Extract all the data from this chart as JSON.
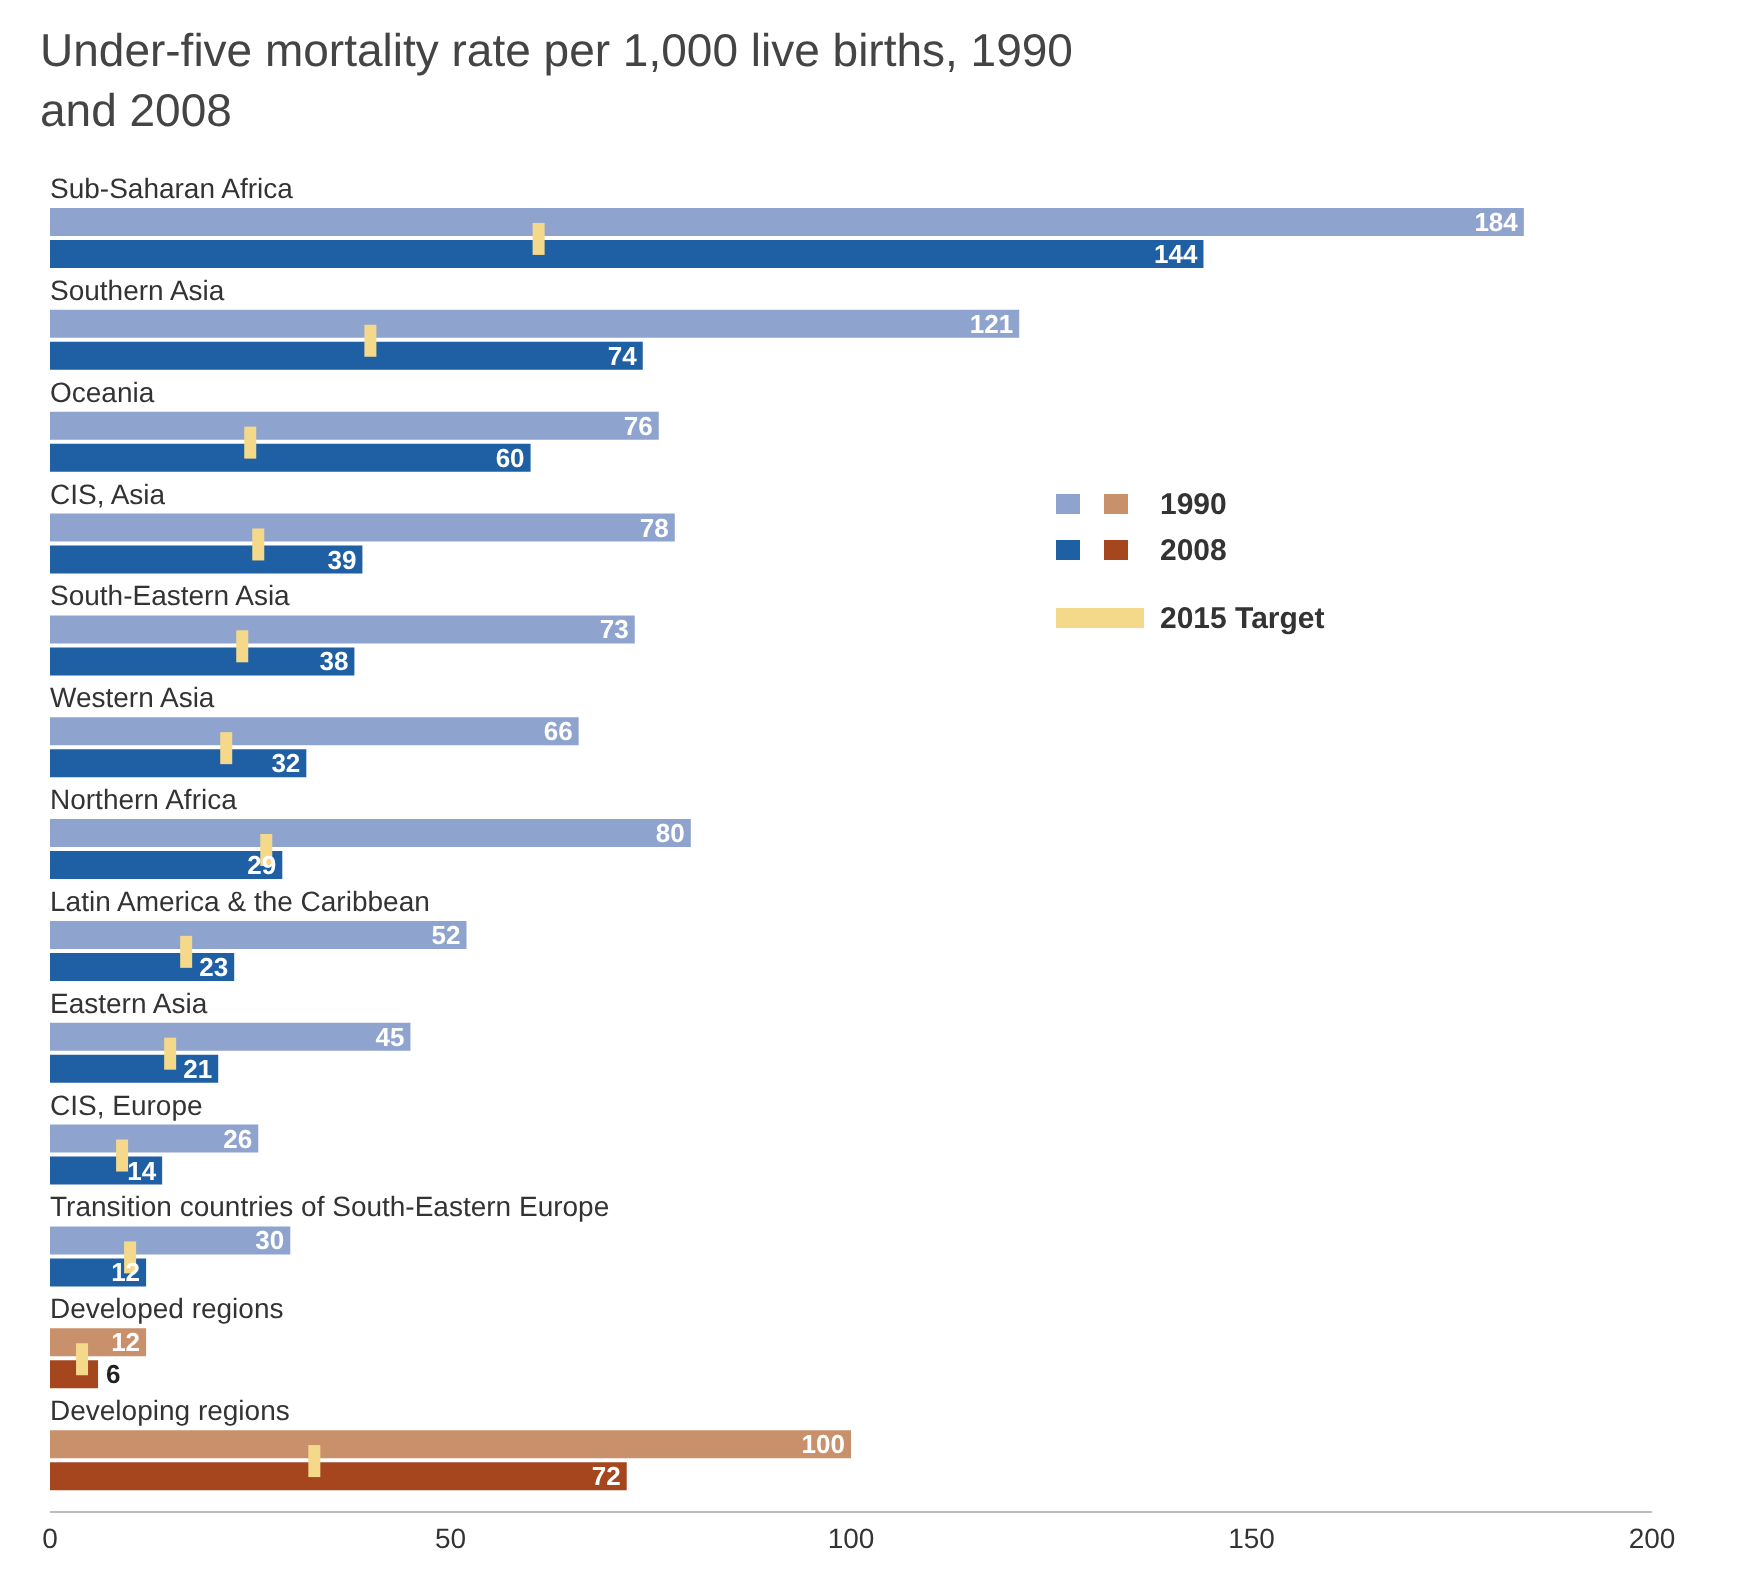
{
  "chart_data": {
    "type": "bar",
    "orientation": "horizontal",
    "title": "Under-five mortality rate per 1,000 live births, 1990 and 2008",
    "categories": [
      "Sub-Saharan Africa",
      "Southern Asia",
      "Oceania",
      "CIS, Asia",
      "South-Eastern Asia",
      "Western Asia",
      "Northern Africa",
      "Latin America & the Caribbean",
      "Eastern Asia",
      "CIS, Europe",
      "Transition countries of South-Eastern Europe",
      "Developed regions",
      "Developing regions"
    ],
    "series": [
      {
        "name": "1990",
        "color": "#8fa3cf",
        "colors": [
          "#8fa3cf",
          "#8fa3cf",
          "#8fa3cf",
          "#8fa3cf",
          "#8fa3cf",
          "#8fa3cf",
          "#8fa3cf",
          "#8fa3cf",
          "#8fa3cf",
          "#8fa3cf",
          "#8fa3cf",
          "#c8916b",
          "#c8916b"
        ],
        "values": [
          184,
          121,
          76,
          78,
          73,
          66,
          80,
          52,
          45,
          26,
          30,
          12,
          100
        ],
        "value_labels": [
          "184",
          "121",
          "76",
          "78",
          "73",
          "66",
          "80",
          "52",
          "45",
          "26",
          "30",
          "12",
          "100"
        ]
      },
      {
        "name": "2008",
        "color": "#1f5fa3",
        "colors": [
          "#1f5fa3",
          "#1f5fa3",
          "#1f5fa3",
          "#1f5fa3",
          "#1f5fa3",
          "#1f5fa3",
          "#1f5fa3",
          "#1f5fa3",
          "#1f5fa3",
          "#1f5fa3",
          "#1f5fa3",
          "#a5461f",
          "#a5461f"
        ],
        "values": [
          144,
          74,
          60,
          39,
          38,
          32,
          29,
          23,
          21,
          14,
          12,
          6,
          72
        ],
        "value_labels": [
          "144",
          "74",
          "60",
          "39",
          "38",
          "32",
          "29",
          "23",
          "21",
          "14",
          "12",
          "6",
          "72"
        ]
      },
      {
        "name": "2015 Target",
        "type": "scatter",
        "color": "#f5d98a",
        "values": [
          61,
          40,
          25,
          26,
          24,
          22,
          27,
          17,
          15,
          9,
          10,
          4,
          33
        ]
      }
    ],
    "xlim": [
      0,
      200
    ],
    "xticks": [
      0,
      50,
      100,
      150,
      200
    ],
    "legend": "right"
  }
}
